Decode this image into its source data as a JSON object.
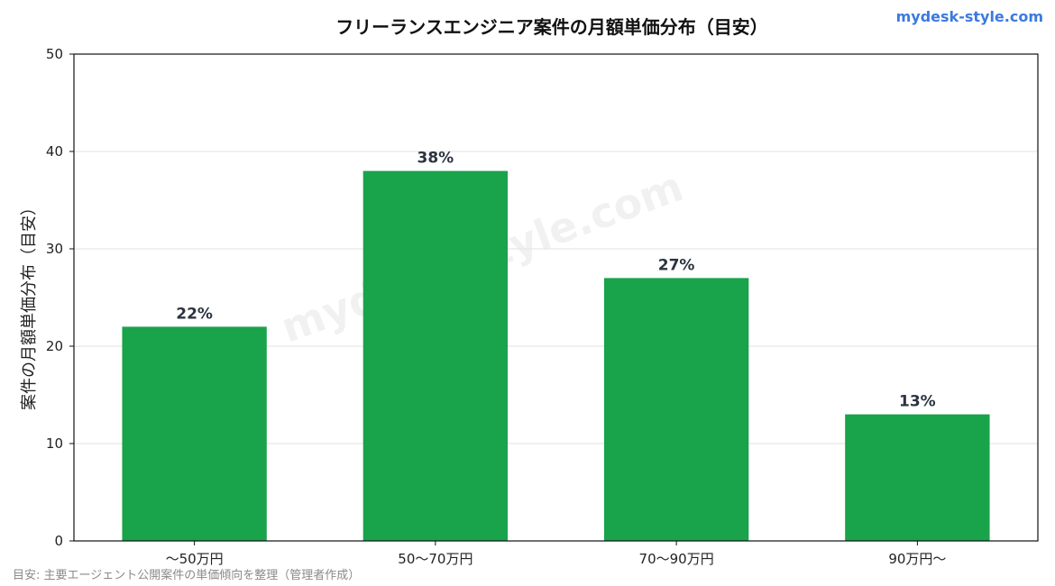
{
  "brand": "mydesk-style.com",
  "source_note": "目安: 主要エージェント公開案件の単価傾向を整理（管理者作成）",
  "watermark": "mydesk-style.com",
  "colors": {
    "bar": "#19a34a",
    "grid": "#e6e6e6",
    "axis": "#111111",
    "brand": "#3b7ae0"
  },
  "chart_data": {
    "type": "bar",
    "title": "フリーランスエンジニア案件の月額単価分布（目安）",
    "xlabel": "",
    "ylabel": "案件の月額単価分布（目安）",
    "categories": [
      "〜50万円",
      "50〜70万円",
      "70〜90万円",
      "90万円〜"
    ],
    "values": [
      22,
      38,
      27,
      13
    ],
    "data_labels": [
      "22%",
      "38%",
      "27%",
      "13%"
    ],
    "ylim": [
      0,
      50
    ],
    "yticks": [
      0,
      10,
      20,
      30,
      40,
      50
    ],
    "grid": "y",
    "legend": "none"
  }
}
